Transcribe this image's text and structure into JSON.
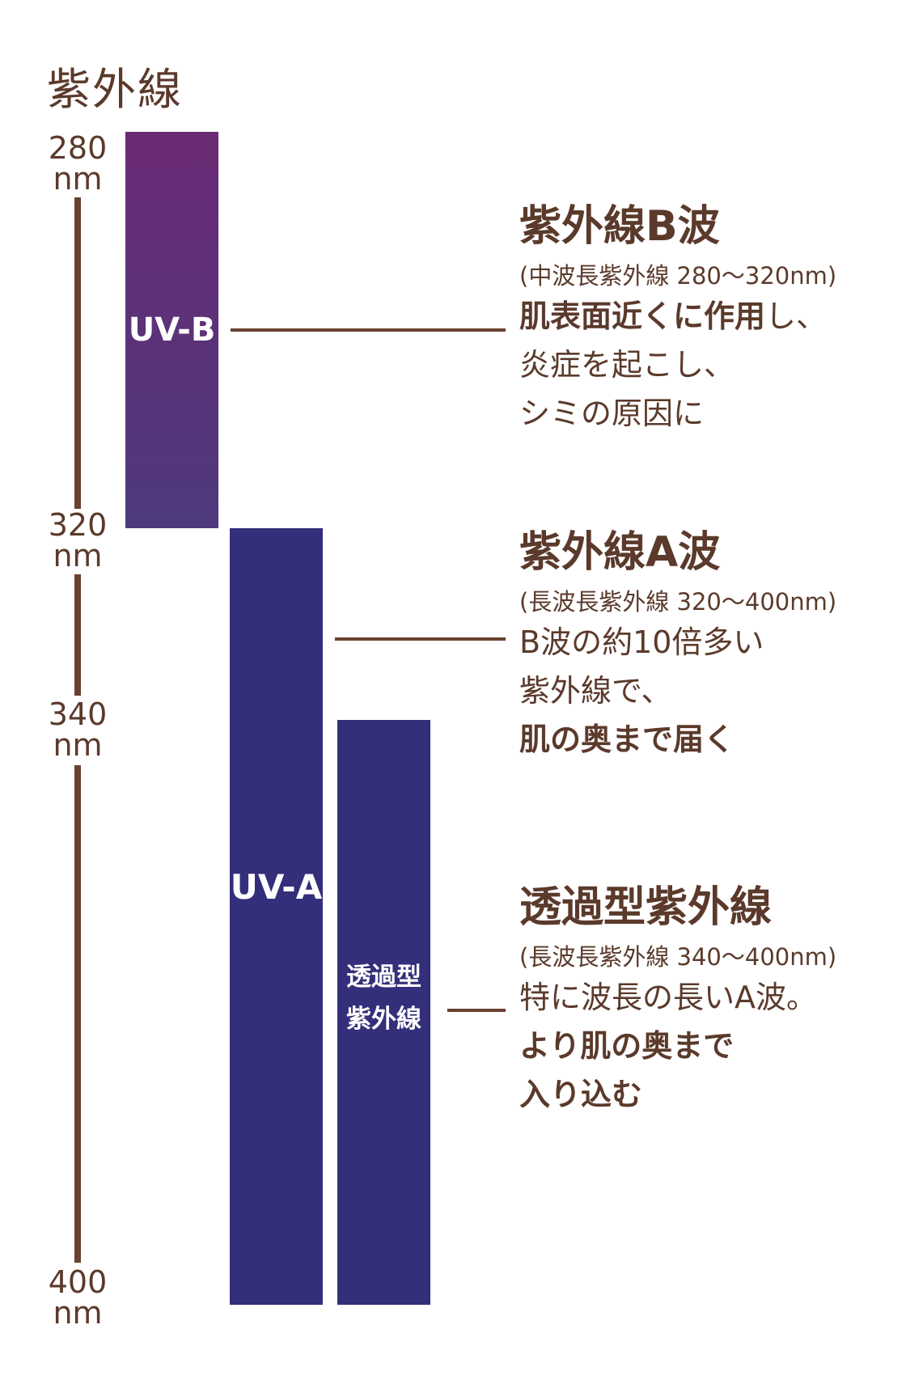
{
  "title": "紫外線",
  "axis_ticks": [
    {
      "value": "280",
      "unit": "nm"
    },
    {
      "value": "320",
      "unit": "nm"
    },
    {
      "value": "340",
      "unit": "nm"
    },
    {
      "value": "400",
      "unit": "nm"
    }
  ],
  "bars": {
    "uvb": {
      "label": "UV-B",
      "range_nm": [
        280,
        320
      ]
    },
    "uva": {
      "label": "UV-A",
      "range_nm": [
        320,
        400
      ]
    },
    "transmissive": {
      "label_line1": "透過型",
      "label_line2": "紫外線",
      "range_nm": [
        340,
        400
      ]
    }
  },
  "sections": {
    "b_wave": {
      "title": "紫外線B波",
      "subtitle": "(中波長紫外線 280〜320nm)",
      "line1_bold": "肌表面近くに作用",
      "line1_rest": "し、",
      "line2": "炎症を起こし、",
      "line3": "シミの原因に"
    },
    "a_wave": {
      "title": "紫外線A波",
      "subtitle": "(長波長紫外線 320〜400nm)",
      "line1": "B波の約10倍多い",
      "line2": "紫外線で、",
      "line3_bold": "肌の奥まで届く"
    },
    "transmissive": {
      "title": "透過型紫外線",
      "subtitle": "(長波長紫外線 340〜400nm)",
      "line1": "特に波長の長いA波。",
      "line2_bold": "より肌の奥まで",
      "line3_bold": "入り込む"
    }
  },
  "colors": {
    "text": "#5b3a2b",
    "axis": "#6a4030",
    "uvb_top": "#6a2a74",
    "uvb_bottom": "#4e3a7c",
    "uva": "#342f7a"
  }
}
